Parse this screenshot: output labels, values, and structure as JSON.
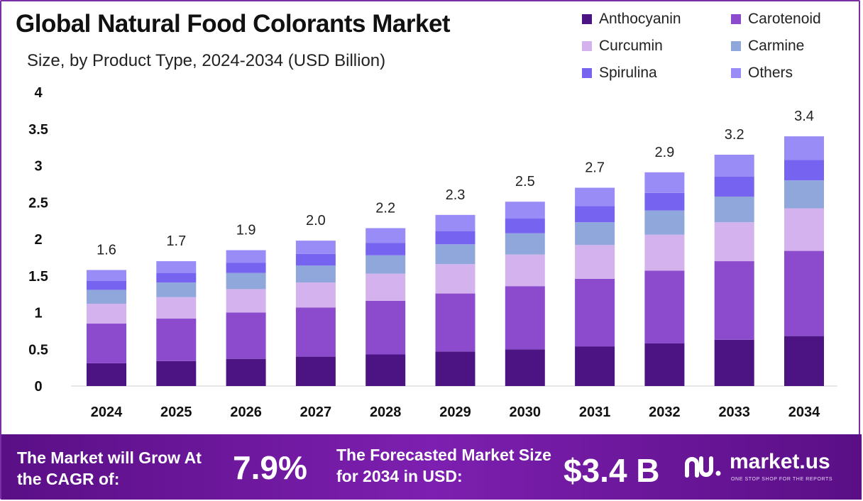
{
  "header": {
    "title": "Global Natural Food Colorants Market",
    "subtitle": "Size, by Product Type, 2024-2034 (USD Billion)"
  },
  "legend": [
    {
      "label": "Anthocyanin",
      "color": "#4b1482"
    },
    {
      "label": "Carotenoid",
      "color": "#8b4bcc"
    },
    {
      "label": "Curcumin",
      "color": "#d4b2ee"
    },
    {
      "label": "Carmine",
      "color": "#90a7dc"
    },
    {
      "label": "Spirulina",
      "color": "#7663f0"
    },
    {
      "label": "Others",
      "color": "#9a8cf6"
    }
  ],
  "chart_data": {
    "type": "bar",
    "stacked": true,
    "categories": [
      "2024",
      "2025",
      "2026",
      "2027",
      "2028",
      "2029",
      "2030",
      "2031",
      "2032",
      "2033",
      "2034"
    ],
    "totals": [
      "1.6",
      "1.7",
      "1.9",
      "2.0",
      "2.2",
      "2.3",
      "2.5",
      "2.7",
      "2.9",
      "3.2",
      "3.4"
    ],
    "ylim": [
      0,
      4
    ],
    "yticks": [
      "0",
      "0.5",
      "1",
      "1.5",
      "2",
      "2.5",
      "3",
      "3.5",
      "4"
    ],
    "grid": false,
    "legend_position": "top-right",
    "series": [
      {
        "name": "Anthocyanin",
        "color": "#4b1482",
        "values": [
          0.31,
          0.34,
          0.37,
          0.4,
          0.43,
          0.47,
          0.5,
          0.54,
          0.58,
          0.63,
          0.68
        ]
      },
      {
        "name": "Carotenoid",
        "color": "#8b4bcc",
        "values": [
          0.54,
          0.58,
          0.63,
          0.67,
          0.73,
          0.79,
          0.86,
          0.92,
          0.99,
          1.07,
          1.16
        ]
      },
      {
        "name": "Curcumin",
        "color": "#d4b2ee",
        "values": [
          0.27,
          0.29,
          0.32,
          0.34,
          0.37,
          0.4,
          0.43,
          0.46,
          0.49,
          0.53,
          0.58
        ]
      },
      {
        "name": "Carmine",
        "color": "#90a7dc",
        "values": [
          0.19,
          0.2,
          0.22,
          0.23,
          0.25,
          0.27,
          0.29,
          0.31,
          0.33,
          0.35,
          0.38
        ]
      },
      {
        "name": "Spirulina",
        "color": "#7663f0",
        "values": [
          0.12,
          0.13,
          0.14,
          0.16,
          0.17,
          0.18,
          0.2,
          0.22,
          0.24,
          0.27,
          0.28
        ]
      },
      {
        "name": "Others",
        "color": "#9a8cf6",
        "values": [
          0.15,
          0.16,
          0.17,
          0.18,
          0.2,
          0.22,
          0.23,
          0.25,
          0.28,
          0.3,
          0.32
        ]
      }
    ]
  },
  "footer": {
    "cagr_label": "The Market will Grow At the CAGR of:",
    "cagr_value": "7.9%",
    "size_label": "The Forecasted Market Size for 2034 in USD:",
    "size_value": "$3.4 B",
    "brand_name": "market.us",
    "brand_tagline": "ONE STOP SHOP FOR THE REPORTS"
  }
}
